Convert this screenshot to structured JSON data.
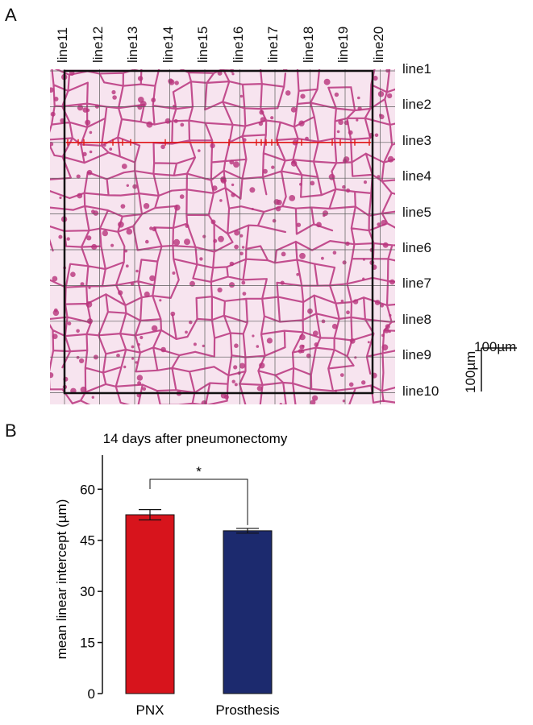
{
  "panelA": {
    "label": "A",
    "top_lines": [
      "line11",
      "line12",
      "line13",
      "line14",
      "line15",
      "line16",
      "line17",
      "line18",
      "line19",
      "line20"
    ],
    "right_lines": [
      "line1",
      "line2",
      "line3",
      "line4",
      "line5",
      "line6",
      "line7",
      "line8",
      "line9",
      "line10"
    ],
    "scale_h": "100µm",
    "scale_v": "100µm",
    "colors": {
      "background": "#f7e4ef",
      "tissue": "#b8337c",
      "grid": "#5a5a5a",
      "frame": "#111111",
      "intercept": "#e01818"
    }
  },
  "panelB": {
    "label": "B"
  },
  "chart_data": {
    "type": "bar",
    "title": "14 days after pneumonectomy",
    "xlabel": "",
    "ylabel": "mean linear intercept (µm)",
    "ylim": [
      0,
      70
    ],
    "yticks": [
      "0",
      "15",
      "30",
      "45",
      "60"
    ],
    "categories": [
      "PNX",
      "Prosthesis"
    ],
    "values": [
      52.5,
      47.8
    ],
    "errors": [
      1.5,
      0.7
    ],
    "colors": [
      "#d7141c",
      "#1c2a6e"
    ],
    "significance": "*"
  }
}
